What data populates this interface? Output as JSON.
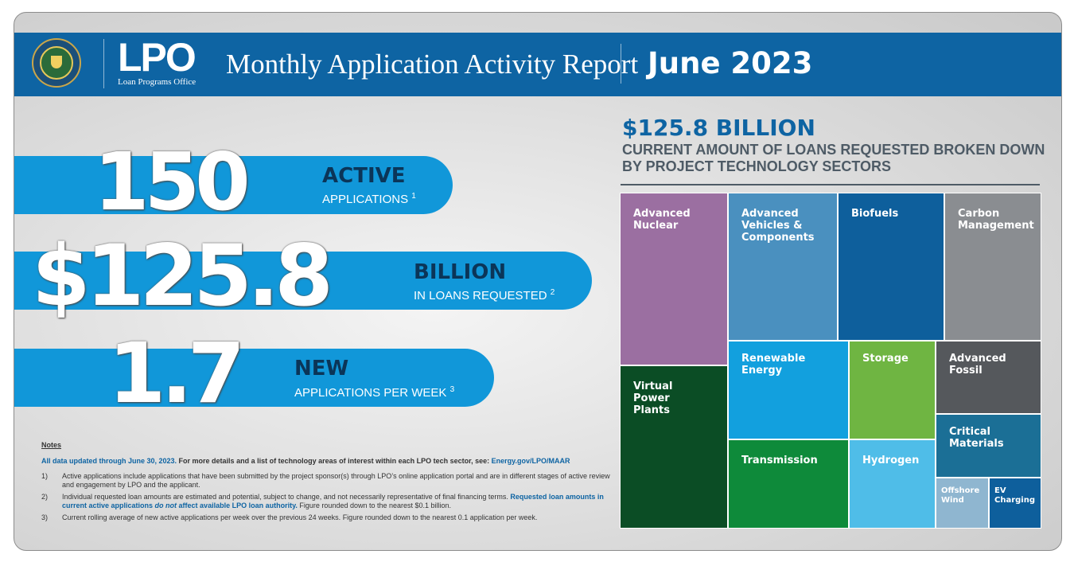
{
  "header": {
    "logo_text": "LPO",
    "logo_sub": "Loan Programs Office",
    "title": "Monthly Application Activity Report",
    "date": "June 2023"
  },
  "stats": [
    {
      "value": "150",
      "word": "ACTIVE",
      "sub": "APPLICATIONS",
      "note": "1"
    },
    {
      "value": "$125.8",
      "word": "BILLION",
      "sub": "IN LOANS REQUESTED",
      "note": "2"
    },
    {
      "value": "1.7",
      "word": "NEW",
      "sub": "APPLICATIONS PER WEEK",
      "note": "3"
    }
  ],
  "notes": {
    "heading": "Notes",
    "lead_blue": "All data updated through June 30, 2023.",
    "lead_black": " For more details and a list of technology areas of interest within each LPO tech sector, see: ",
    "lead_link": "Energy.gov/LPO/MAAR",
    "items": [
      {
        "num": "1)",
        "text": "Active applications include applications that have been submitted by the project sponsor(s) through LPO’s online application portal and are in different stages of active review and engagement by LPO and the applicant."
      },
      {
        "num": "2)",
        "text_a": "Individual requested loan amounts are estimated and potential, subject to change, and not necessarily representative of final financing terms. ",
        "text_b": "Requested loan amounts in current active applications ",
        "text_c": "do not",
        "text_d": " affect available LPO loan authority.",
        "text_e": " Figure rounded down to the nearest $0.1 billion."
      },
      {
        "num": "3)",
        "text": "Current rolling average of new active applications per week over the previous 24 weeks. Figure rounded down to the nearest 0.1 application per week."
      }
    ]
  },
  "right_panel": {
    "amount": "$125.8 BILLION",
    "caption": "CURRENT AMOUNT OF LOANS REQUESTED BROKEN DOWN BY PROJECT TECHNOLOGY SECTORS"
  },
  "treemap": {
    "sectors": [
      {
        "label": "Advanced\nNuclear",
        "color": "#9b6fa1"
      },
      {
        "label": "Advanced\nVehicles &\nComponents",
        "color": "#4a90bf"
      },
      {
        "label": "Biofuels",
        "color": "#0e5f9c"
      },
      {
        "label": "Carbon\nManagement",
        "color": "#8a8d91"
      },
      {
        "label": "Virtual\nPower\nPlants",
        "color": "#0b4d25"
      },
      {
        "label": "Renewable\nEnergy",
        "color": "#12a0de"
      },
      {
        "label": "Storage",
        "color": "#6fb542"
      },
      {
        "label": "Advanced\nFossil",
        "color": "#55585c"
      },
      {
        "label": "Critical\nMaterials",
        "color": "#1b6f96"
      },
      {
        "label": "Transmission",
        "color": "#0e8a3a"
      },
      {
        "label": "Hydrogen",
        "color": "#4fbde8"
      },
      {
        "label": "Offshore\nWind",
        "color": "#8fb6d0"
      },
      {
        "label": "EV\nCharging",
        "color": "#0e5f9c"
      }
    ]
  }
}
